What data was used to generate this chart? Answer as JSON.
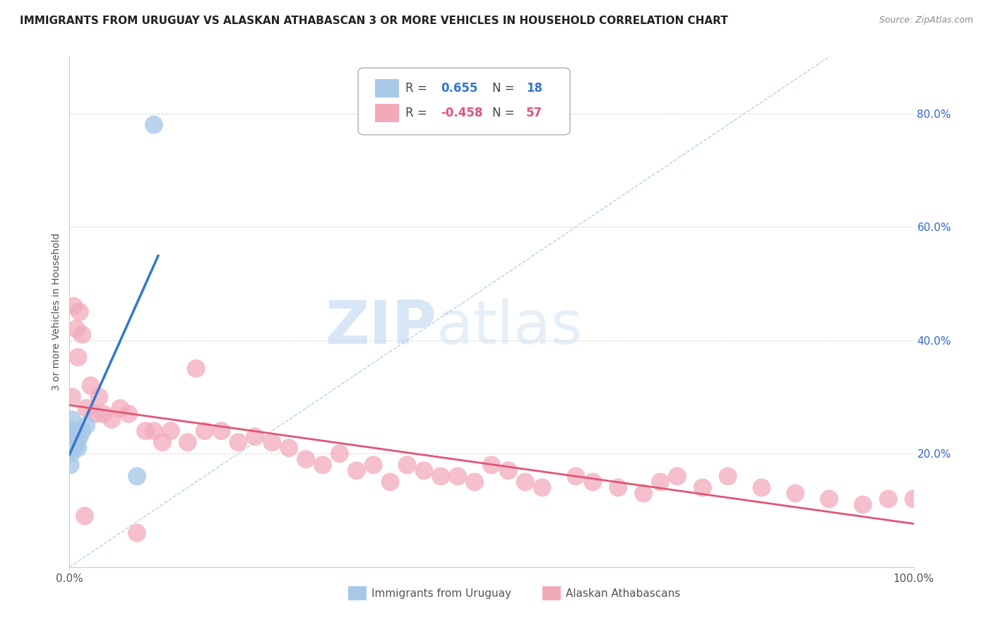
{
  "title": "IMMIGRANTS FROM URUGUAY VS ALASKAN ATHABASCAN 3 OR MORE VEHICLES IN HOUSEHOLD CORRELATION CHART",
  "source": "Source: ZipAtlas.com",
  "ylabel": "3 or more Vehicles in Household",
  "legend_r_blue": "R = ",
  "legend_val_blue": "0.655",
  "legend_n_blue": "N = ",
  "legend_nval_blue": "18",
  "legend_r_pink": "R = ",
  "legend_val_pink": "-0.458",
  "legend_n_pink": "N = ",
  "legend_nval_pink": "57",
  "blue_color": "#A8C8E8",
  "pink_color": "#F2AABB",
  "blue_line_color": "#3377CC",
  "pink_line_color": "#E05575",
  "diagonal_color": "#AACCEE",
  "background_color": "#FFFFFF",
  "watermark_zip": "ZIP",
  "watermark_atlas": "atlas",
  "right_tick_color": "#3366CC",
  "ytick_labels": [
    "20.0%",
    "40.0%",
    "60.0%",
    "80.0%"
  ],
  "ytick_vals": [
    20,
    40,
    60,
    80
  ],
  "xlim": [
    0,
    100
  ],
  "ylim": [
    0,
    90
  ],
  "figsize": [
    14.06,
    8.92
  ],
  "dpi": 100,
  "blue_x": [
    0.1,
    0.15,
    0.2,
    0.25,
    0.3,
    0.35,
    0.4,
    0.5,
    0.6,
    0.7,
    0.8,
    0.9,
    1.0,
    1.2,
    1.5,
    2.0,
    8.0,
    10.0
  ],
  "blue_y": [
    18.0,
    22.0,
    20.0,
    24.0,
    26.0,
    22.0,
    21.0,
    23.0,
    24.0,
    22.0,
    23.0,
    22.0,
    21.0,
    23.0,
    24.0,
    25.0,
    16.0,
    78.0
  ],
  "pink_x": [
    0.3,
    0.5,
    0.8,
    1.0,
    1.2,
    1.5,
    1.8,
    2.0,
    2.5,
    3.0,
    3.5,
    4.0,
    5.0,
    6.0,
    7.0,
    8.0,
    9.0,
    10.0,
    11.0,
    12.0,
    14.0,
    15.0,
    16.0,
    18.0,
    20.0,
    22.0,
    24.0,
    26.0,
    28.0,
    30.0,
    32.0,
    34.0,
    36.0,
    38.0,
    40.0,
    42.0,
    44.0,
    46.0,
    48.0,
    50.0,
    52.0,
    54.0,
    56.0,
    60.0,
    62.0,
    65.0,
    68.0,
    70.0,
    72.0,
    75.0,
    78.0,
    82.0,
    86.0,
    90.0,
    94.0,
    97.0,
    100.0
  ],
  "pink_y": [
    30.0,
    46.0,
    42.0,
    37.0,
    45.0,
    41.0,
    9.0,
    28.0,
    32.0,
    27.0,
    30.0,
    27.0,
    26.0,
    28.0,
    27.0,
    6.0,
    24.0,
    24.0,
    22.0,
    24.0,
    22.0,
    35.0,
    24.0,
    24.0,
    22.0,
    23.0,
    22.0,
    21.0,
    19.0,
    18.0,
    20.0,
    17.0,
    18.0,
    15.0,
    18.0,
    17.0,
    16.0,
    16.0,
    15.0,
    18.0,
    17.0,
    15.0,
    14.0,
    16.0,
    15.0,
    14.0,
    13.0,
    15.0,
    16.0,
    14.0,
    16.0,
    14.0,
    13.0,
    12.0,
    11.0,
    12.0,
    12.0
  ]
}
